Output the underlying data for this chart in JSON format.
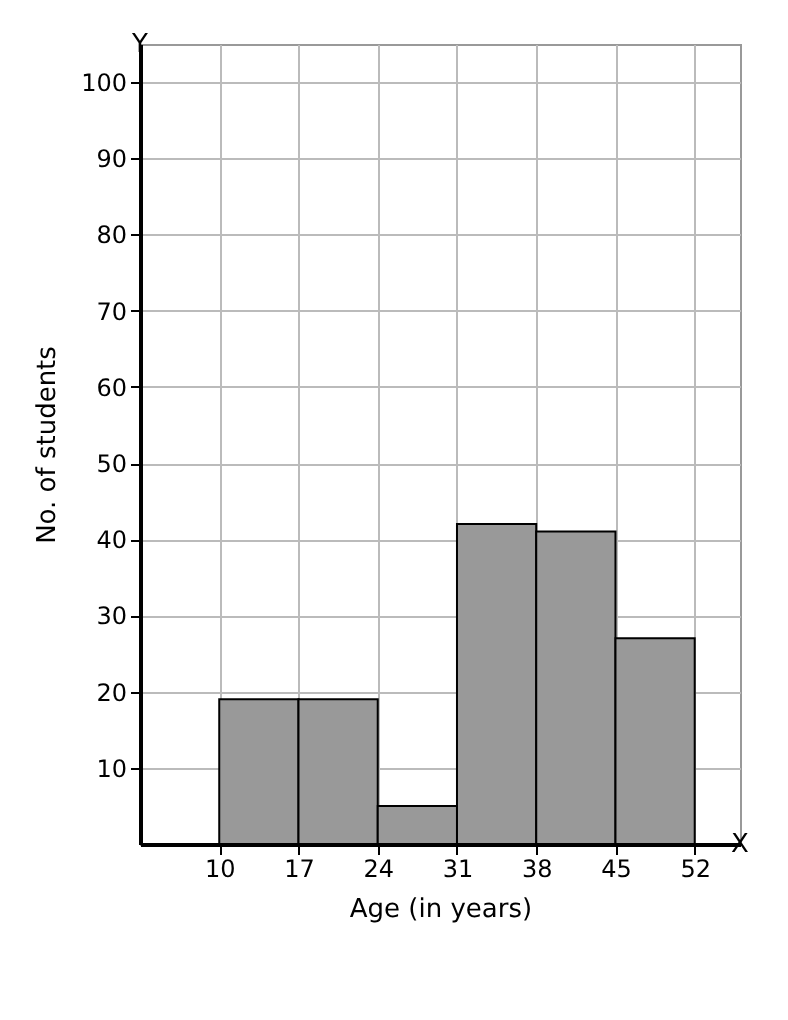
{
  "chart_data": {
    "type": "histogram",
    "xlabel": "Age (in years)",
    "ylabel": "No. of students",
    "bins": [
      10,
      17,
      24,
      31,
      38,
      45,
      52
    ],
    "values": [
      19,
      19,
      5,
      42,
      41,
      27
    ],
    "color": "#999999",
    "xlim": [
      3,
      56
    ],
    "xticks": [
      10,
      17,
      24,
      31,
      38,
      45,
      52
    ],
    "ylim": [
      0,
      105
    ],
    "yticks": [
      10,
      20,
      30,
      40,
      50,
      60,
      70,
      80,
      90,
      100
    ],
    "grid": true,
    "annotations": [
      "X",
      "Y"
    ]
  }
}
